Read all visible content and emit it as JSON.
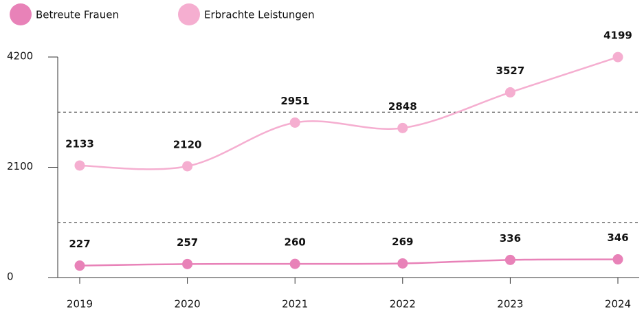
{
  "chart_data": {
    "type": "line",
    "categories": [
      "2019",
      "2020",
      "2021",
      "2022",
      "2023",
      "2024"
    ],
    "series": [
      {
        "name": "Betreute Frauen",
        "color": "#e882b8",
        "values": [
          227,
          257,
          260,
          269,
          336,
          346
        ]
      },
      {
        "name": "Erbrachte Leistungen",
        "color": "#f5aed0",
        "values": [
          2133,
          2120,
          2951,
          2848,
          3527,
          4199
        ]
      }
    ],
    "ylim": [
      0,
      4200
    ],
    "yticks": [
      0,
      2100,
      4200
    ],
    "gridlines": [
      1050,
      3150
    ],
    "legend": "top-left",
    "smooth": true
  }
}
